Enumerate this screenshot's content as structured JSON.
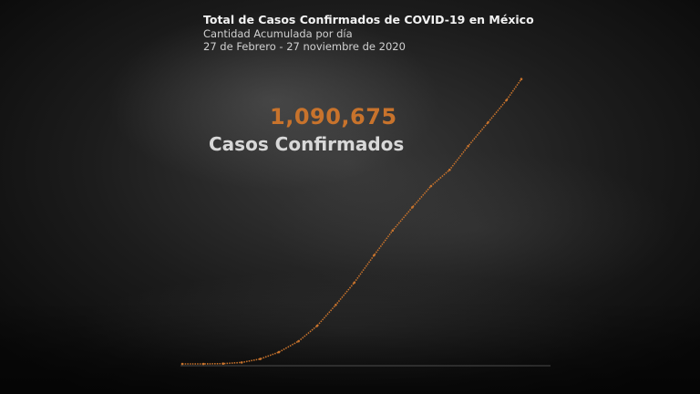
{
  "header": {
    "title": "Total de Casos Confirmados de COVID-19 en México",
    "subtitle": "Cantidad Acumulada por día",
    "date_range": "27 de Febrero - 27 noviembre de 2020"
  },
  "highlight": {
    "value": "1,090,675",
    "label": "Casos Confirmados"
  },
  "colors": {
    "line": "#c8732c",
    "text_light": "#f2f2f2",
    "text_muted": "#d0d0d0",
    "accent": "#c8732c"
  },
  "chart_data": {
    "type": "line",
    "title": "Total de Casos Confirmados de COVID-19 en México",
    "xlabel": "",
    "ylabel": "",
    "x_range": [
      "2020-02-27",
      "2020-11-27"
    ],
    "ylim": [
      0,
      1100000
    ],
    "grid": false,
    "legend": "none",
    "series": [
      {
        "x": [
          "2020-02-27",
          "2020-03-15",
          "2020-03-31",
          "2020-04-15",
          "2020-04-30",
          "2020-05-15",
          "2020-05-31",
          "2020-06-15",
          "2020-06-30",
          "2020-07-15",
          "2020-07-31",
          "2020-08-15",
          "2020-08-31",
          "2020-09-15",
          "2020-09-30",
          "2020-10-15",
          "2020-10-31",
          "2020-11-15",
          "2020-11-27"
        ],
        "y": [
          1,
          40,
          1200,
          5500,
          19000,
          45000,
          87000,
          146000,
          226000,
          311000,
          416000,
          511000,
          600000,
          681000,
          743000,
          834000,
          924000,
          1010000,
          1090675
        ]
      }
    ]
  }
}
